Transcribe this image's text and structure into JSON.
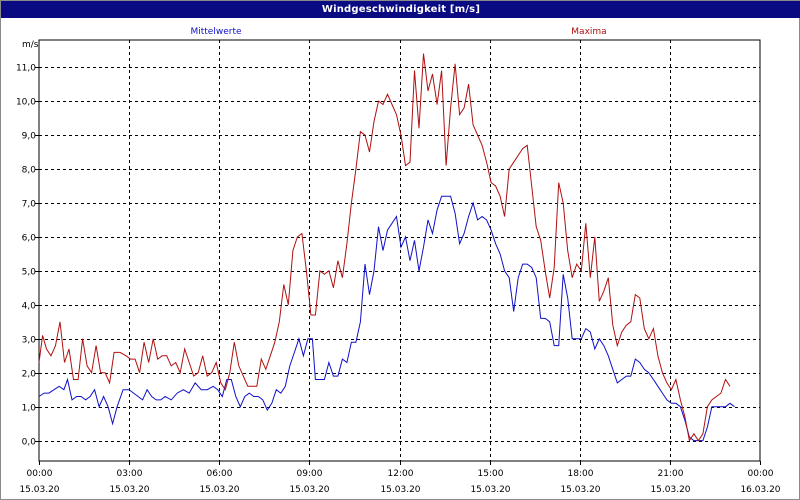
{
  "window": {
    "title": "Windgeschwindigkeit [m/s]"
  },
  "colors": {
    "titlebar": "#0a0a82",
    "mittel": "#1010c8",
    "maxima": "#b01010",
    "grid": "#000000"
  },
  "chart_data": {
    "type": "line",
    "title": "Windgeschwindigkeit [m/s]",
    "ylabel": "m/s",
    "ylim": [
      -0.6,
      11.8
    ],
    "y_ticks": [
      "0,0",
      "1,0",
      "2,0",
      "3,0",
      "4,0",
      "5,0",
      "6,0",
      "7,0",
      "8,0",
      "9,0",
      "10,0",
      "11,0"
    ],
    "x_range_hours": [
      0,
      24
    ],
    "x_ticks": [
      {
        "time": "00:00",
        "date": "15.03.20"
      },
      {
        "time": "03:00",
        "date": "15.03.20"
      },
      {
        "time": "06:00",
        "date": "15.03.20"
      },
      {
        "time": "09:00",
        "date": "15.03.20"
      },
      {
        "time": "12:00",
        "date": "15.03.20"
      },
      {
        "time": "15:00",
        "date": "15.03.20"
      },
      {
        "time": "18:00",
        "date": "15.03.20"
      },
      {
        "time": "21:00",
        "date": "15.03.20"
      },
      {
        "time": "00:00",
        "date": "16.03.20"
      }
    ],
    "grid": true,
    "series": [
      {
        "name": "Mittelwerte",
        "color": "#1010c8",
        "legend_position": "top-left",
        "points": [
          [
            0.0,
            1.3
          ],
          [
            0.17,
            1.4
          ],
          [
            0.33,
            1.4
          ],
          [
            0.5,
            1.5
          ],
          [
            0.67,
            1.6
          ],
          [
            0.83,
            1.5
          ],
          [
            0.95,
            1.8
          ],
          [
            1.1,
            1.2
          ],
          [
            1.25,
            1.3
          ],
          [
            1.4,
            1.3
          ],
          [
            1.55,
            1.2
          ],
          [
            1.7,
            1.3
          ],
          [
            1.85,
            1.5
          ],
          [
            2.0,
            1.0
          ],
          [
            2.15,
            1.3
          ],
          [
            2.3,
            1.0
          ],
          [
            2.45,
            0.5
          ],
          [
            2.6,
            1.0
          ],
          [
            2.8,
            1.5
          ],
          [
            3.0,
            1.5
          ],
          [
            3.15,
            1.4
          ],
          [
            3.3,
            1.3
          ],
          [
            3.45,
            1.2
          ],
          [
            3.6,
            1.5
          ],
          [
            3.75,
            1.3
          ],
          [
            3.9,
            1.2
          ],
          [
            4.05,
            1.2
          ],
          [
            4.2,
            1.3
          ],
          [
            4.4,
            1.2
          ],
          [
            4.6,
            1.4
          ],
          [
            4.8,
            1.5
          ],
          [
            5.0,
            1.4
          ],
          [
            5.2,
            1.7
          ],
          [
            5.4,
            1.5
          ],
          [
            5.6,
            1.5
          ],
          [
            5.8,
            1.6
          ],
          [
            5.95,
            1.5
          ],
          [
            6.1,
            1.3
          ],
          [
            6.25,
            1.8
          ],
          [
            6.4,
            1.8
          ],
          [
            6.55,
            1.3
          ],
          [
            6.7,
            1.0
          ],
          [
            6.85,
            1.3
          ],
          [
            7.0,
            1.4
          ],
          [
            7.15,
            1.3
          ],
          [
            7.3,
            1.3
          ],
          [
            7.45,
            1.2
          ],
          [
            7.6,
            0.9
          ],
          [
            7.75,
            1.1
          ],
          [
            7.9,
            1.5
          ],
          [
            8.05,
            1.4
          ],
          [
            8.2,
            1.6
          ],
          [
            8.35,
            2.2
          ],
          [
            8.5,
            2.6
          ],
          [
            8.65,
            3.0
          ],
          [
            8.8,
            2.5
          ],
          [
            8.95,
            3.0
          ],
          [
            9.1,
            3.0
          ],
          [
            9.2,
            1.8
          ],
          [
            9.35,
            1.8
          ],
          [
            9.5,
            1.8
          ],
          [
            9.65,
            2.3
          ],
          [
            9.8,
            1.9
          ],
          [
            9.95,
            1.9
          ],
          [
            10.1,
            2.4
          ],
          [
            10.25,
            2.3
          ],
          [
            10.4,
            2.9
          ],
          [
            10.55,
            2.9
          ],
          [
            10.7,
            3.5
          ],
          [
            10.85,
            5.2
          ],
          [
            11.0,
            4.3
          ],
          [
            11.15,
            5.0
          ],
          [
            11.3,
            6.3
          ],
          [
            11.45,
            5.6
          ],
          [
            11.6,
            6.2
          ],
          [
            11.75,
            6.4
          ],
          [
            11.9,
            6.6
          ],
          [
            12.05,
            5.7
          ],
          [
            12.2,
            6.0
          ],
          [
            12.35,
            5.3
          ],
          [
            12.5,
            5.9
          ],
          [
            12.65,
            5.0
          ],
          [
            12.8,
            5.7
          ],
          [
            12.95,
            6.5
          ],
          [
            13.1,
            6.1
          ],
          [
            13.25,
            6.8
          ],
          [
            13.4,
            7.2
          ],
          [
            13.55,
            7.2
          ],
          [
            13.7,
            7.2
          ],
          [
            13.85,
            6.7
          ],
          [
            14.0,
            5.8
          ],
          [
            14.15,
            6.1
          ],
          [
            14.3,
            6.6
          ],
          [
            14.45,
            7.0
          ],
          [
            14.6,
            6.5
          ],
          [
            14.75,
            6.6
          ],
          [
            14.9,
            6.5
          ],
          [
            15.05,
            6.2
          ],
          [
            15.2,
            5.8
          ],
          [
            15.35,
            5.5
          ],
          [
            15.5,
            5.0
          ],
          [
            15.65,
            4.8
          ],
          [
            15.8,
            3.8
          ],
          [
            15.95,
            4.8
          ],
          [
            16.1,
            5.2
          ],
          [
            16.25,
            5.2
          ],
          [
            16.4,
            5.1
          ],
          [
            16.55,
            4.8
          ],
          [
            16.7,
            3.6
          ],
          [
            16.85,
            3.6
          ],
          [
            17.0,
            3.5
          ],
          [
            17.15,
            2.8
          ],
          [
            17.3,
            2.8
          ],
          [
            17.45,
            4.9
          ],
          [
            17.6,
            4.2
          ],
          [
            17.75,
            3.0
          ],
          [
            17.9,
            3.0
          ],
          [
            18.05,
            3.0
          ],
          [
            18.2,
            3.3
          ],
          [
            18.35,
            3.2
          ],
          [
            18.5,
            2.7
          ],
          [
            18.65,
            3.0
          ],
          [
            18.8,
            2.8
          ],
          [
            18.95,
            2.5
          ],
          [
            19.1,
            2.1
          ],
          [
            19.25,
            1.7
          ],
          [
            19.4,
            1.8
          ],
          [
            19.55,
            1.9
          ],
          [
            19.7,
            1.9
          ],
          [
            19.85,
            2.4
          ],
          [
            20.0,
            2.3
          ],
          [
            20.15,
            2.1
          ],
          [
            20.3,
            2.0
          ],
          [
            20.45,
            1.8
          ],
          [
            20.6,
            1.6
          ],
          [
            20.75,
            1.4
          ],
          [
            20.9,
            1.2
          ],
          [
            21.05,
            1.1
          ],
          [
            21.2,
            1.1
          ],
          [
            21.35,
            1.0
          ],
          [
            21.5,
            0.6
          ],
          [
            21.65,
            0.1
          ],
          [
            21.8,
            0.0
          ],
          [
            21.95,
            0.0
          ],
          [
            22.1,
            0.0
          ],
          [
            22.25,
            0.4
          ],
          [
            22.4,
            1.0
          ],
          [
            22.55,
            1.0
          ],
          [
            22.7,
            1.0
          ],
          [
            22.85,
            1.0
          ],
          [
            23.0,
            1.1
          ],
          [
            23.15,
            1.0
          ]
        ]
      },
      {
        "name": "Maxima",
        "color": "#b01010",
        "legend_position": "top-right",
        "points": [
          [
            0.0,
            2.3
          ],
          [
            0.12,
            3.1
          ],
          [
            0.25,
            2.7
          ],
          [
            0.4,
            2.5
          ],
          [
            0.55,
            2.8
          ],
          [
            0.7,
            3.5
          ],
          [
            0.85,
            2.3
          ],
          [
            1.0,
            2.7
          ],
          [
            1.15,
            1.8
          ],
          [
            1.3,
            1.8
          ],
          [
            1.45,
            3.0
          ],
          [
            1.6,
            2.2
          ],
          [
            1.75,
            2.0
          ],
          [
            1.9,
            2.8
          ],
          [
            2.05,
            2.0
          ],
          [
            2.2,
            2.0
          ],
          [
            2.35,
            1.7
          ],
          [
            2.5,
            2.6
          ],
          [
            2.7,
            2.6
          ],
          [
            2.9,
            2.5
          ],
          [
            3.05,
            2.4
          ],
          [
            3.2,
            2.4
          ],
          [
            3.35,
            2.0
          ],
          [
            3.5,
            2.9
          ],
          [
            3.65,
            2.3
          ],
          [
            3.8,
            3.0
          ],
          [
            3.95,
            2.4
          ],
          [
            4.1,
            2.5
          ],
          [
            4.25,
            2.5
          ],
          [
            4.4,
            2.2
          ],
          [
            4.55,
            2.3
          ],
          [
            4.7,
            2.0
          ],
          [
            4.85,
            2.7
          ],
          [
            5.0,
            2.3
          ],
          [
            5.15,
            1.9
          ],
          [
            5.3,
            2.0
          ],
          [
            5.45,
            2.5
          ],
          [
            5.6,
            1.9
          ],
          [
            5.75,
            2.0
          ],
          [
            5.9,
            2.3
          ],
          [
            6.05,
            1.7
          ],
          [
            6.2,
            1.5
          ],
          [
            6.35,
            2.0
          ],
          [
            6.5,
            2.9
          ],
          [
            6.65,
            2.2
          ],
          [
            6.8,
            1.9
          ],
          [
            6.95,
            1.6
          ],
          [
            7.1,
            1.6
          ],
          [
            7.25,
            1.6
          ],
          [
            7.4,
            2.4
          ],
          [
            7.55,
            2.1
          ],
          [
            7.7,
            2.5
          ],
          [
            7.85,
            2.9
          ],
          [
            8.0,
            3.5
          ],
          [
            8.15,
            4.6
          ],
          [
            8.3,
            4.0
          ],
          [
            8.45,
            5.6
          ],
          [
            8.6,
            6.0
          ],
          [
            8.75,
            6.1
          ],
          [
            8.9,
            5.0
          ],
          [
            9.05,
            3.7
          ],
          [
            9.2,
            3.7
          ],
          [
            9.35,
            5.0
          ],
          [
            9.5,
            4.9
          ],
          [
            9.65,
            5.0
          ],
          [
            9.8,
            4.5
          ],
          [
            9.95,
            5.3
          ],
          [
            10.1,
            4.8
          ],
          [
            10.25,
            5.8
          ],
          [
            10.4,
            7.0
          ],
          [
            10.55,
            8.0
          ],
          [
            10.7,
            9.1
          ],
          [
            10.85,
            9.0
          ],
          [
            11.0,
            8.5
          ],
          [
            11.15,
            9.4
          ],
          [
            11.3,
            10.0
          ],
          [
            11.45,
            9.9
          ],
          [
            11.6,
            10.2
          ],
          [
            11.75,
            9.9
          ],
          [
            11.9,
            9.6
          ],
          [
            12.05,
            9.0
          ],
          [
            12.2,
            8.1
          ],
          [
            12.35,
            8.2
          ],
          [
            12.5,
            10.9
          ],
          [
            12.65,
            9.2
          ],
          [
            12.8,
            11.4
          ],
          [
            12.95,
            10.3
          ],
          [
            13.1,
            10.8
          ],
          [
            13.25,
            9.9
          ],
          [
            13.4,
            10.9
          ],
          [
            13.55,
            8.1
          ],
          [
            13.7,
            9.8
          ],
          [
            13.85,
            11.1
          ],
          [
            14.0,
            9.6
          ],
          [
            14.15,
            9.8
          ],
          [
            14.3,
            10.5
          ],
          [
            14.45,
            9.3
          ],
          [
            14.6,
            9.0
          ],
          [
            14.75,
            8.7
          ],
          [
            14.9,
            8.2
          ],
          [
            15.05,
            7.6
          ],
          [
            15.2,
            7.5
          ],
          [
            15.35,
            7.2
          ],
          [
            15.5,
            6.6
          ],
          [
            15.65,
            8.0
          ],
          [
            15.8,
            8.2
          ],
          [
            15.95,
            8.4
          ],
          [
            16.1,
            8.6
          ],
          [
            16.25,
            8.7
          ],
          [
            16.4,
            7.5
          ],
          [
            16.55,
            6.3
          ],
          [
            16.7,
            5.9
          ],
          [
            16.85,
            5.0
          ],
          [
            17.0,
            4.2
          ],
          [
            17.15,
            5.1
          ],
          [
            17.3,
            7.6
          ],
          [
            17.45,
            7.0
          ],
          [
            17.6,
            5.6
          ],
          [
            17.75,
            4.8
          ],
          [
            17.9,
            5.2
          ],
          [
            18.05,
            5.0
          ],
          [
            18.2,
            6.4
          ],
          [
            18.35,
            4.8
          ],
          [
            18.5,
            6.0
          ],
          [
            18.65,
            4.1
          ],
          [
            18.8,
            4.4
          ],
          [
            18.95,
            4.8
          ],
          [
            19.1,
            3.4
          ],
          [
            19.25,
            2.8
          ],
          [
            19.4,
            3.2
          ],
          [
            19.55,
            3.4
          ],
          [
            19.7,
            3.5
          ],
          [
            19.85,
            4.3
          ],
          [
            20.0,
            4.2
          ],
          [
            20.15,
            3.3
          ],
          [
            20.3,
            3.0
          ],
          [
            20.45,
            3.3
          ],
          [
            20.6,
            2.5
          ],
          [
            20.75,
            2.0
          ],
          [
            20.9,
            1.7
          ],
          [
            21.05,
            1.5
          ],
          [
            21.2,
            1.8
          ],
          [
            21.35,
            1.2
          ],
          [
            21.5,
            0.7
          ],
          [
            21.65,
            0.0
          ],
          [
            21.8,
            0.2
          ],
          [
            21.95,
            0.0
          ],
          [
            22.1,
            0.2
          ],
          [
            22.25,
            1.0
          ],
          [
            22.4,
            1.2
          ],
          [
            22.55,
            1.3
          ],
          [
            22.7,
            1.4
          ],
          [
            22.85,
            1.8
          ],
          [
            23.0,
            1.6
          ]
        ]
      }
    ]
  }
}
